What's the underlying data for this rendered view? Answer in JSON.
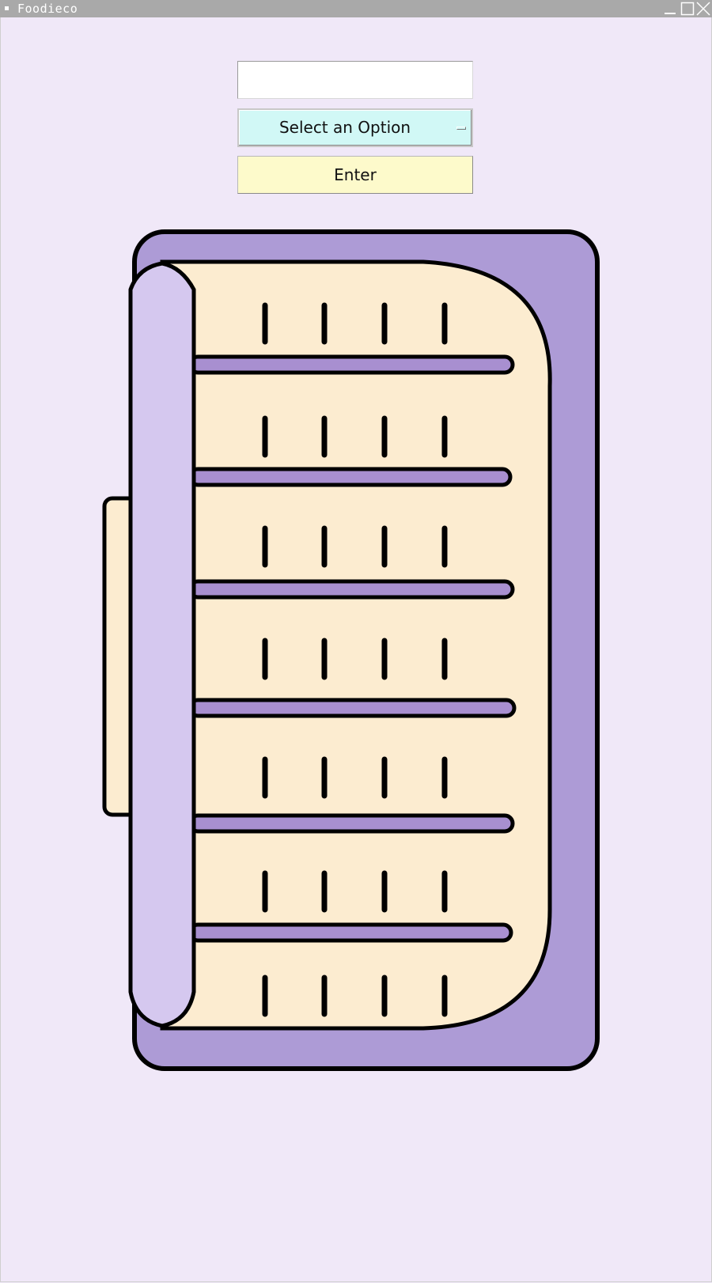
{
  "window": {
    "title": "Foodieco",
    "controls": [
      "minimize-icon",
      "maximize-icon",
      "close-icon"
    ]
  },
  "form": {
    "text_entry_value": "",
    "option_menu_selected": "Select an Option",
    "enter_label": "Enter"
  },
  "colors": {
    "background": "#f0e8f8",
    "titlebar": "#a9a9a9",
    "option_menu": "#d1f8f6",
    "enter_button": "#fdfacb",
    "tray_outer": "#ad9bd6",
    "tray_cover": "#d5c8ef",
    "food_fill": "#fcecd0",
    "slot_fill": "#a88fd0",
    "outline": "#000000"
  },
  "illustration": {
    "name": "food tray with slots",
    "icon": "food-tray-illustration"
  }
}
